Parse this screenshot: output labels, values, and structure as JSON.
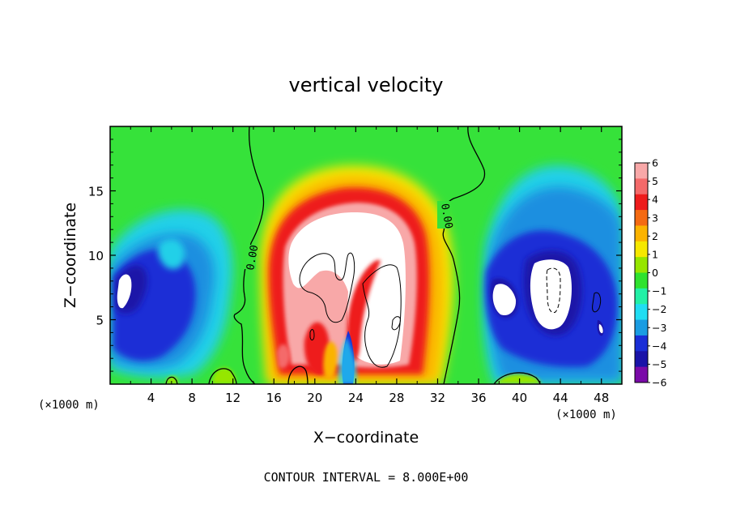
{
  "chart_data": {
    "type": "heatmap",
    "title": "vertical velocity",
    "xlabel": "X−coordinate",
    "ylabel": "Z−coordinate",
    "x_unit_left": "(×1000 m)",
    "x_unit_right": "(×1000 m)",
    "xlim": [
      0,
      50
    ],
    "ylim": [
      0,
      20
    ],
    "x_ticks": [
      4,
      8,
      12,
      16,
      20,
      24,
      28,
      32,
      36,
      40,
      44,
      48
    ],
    "y_ticks": [
      5,
      10,
      15
    ],
    "grid": false,
    "colorbar": {
      "position": "right",
      "levels": [
        6,
        5,
        4,
        3,
        2,
        1,
        0,
        -1,
        -2,
        -3,
        -4,
        -5,
        -6
      ],
      "labels": [
        "6",
        "5",
        "4",
        "3",
        "2",
        "1",
        "0",
        "−1",
        "−2",
        "−3",
        "−4",
        "−5",
        "−6"
      ],
      "colors": [
        "#f8a8a8",
        "#f46a6a",
        "#ee1c1c",
        "#f46a12",
        "#fbb300",
        "#f6e800",
        "#96e600",
        "#2fe22f",
        "#22f0a6",
        "#20ddf3",
        "#1a9ce2",
        "#1a2ed6",
        "#1a13a8",
        "#7a0aa8"
      ]
    },
    "contour_labels": [
      {
        "text": "0.00",
        "x": 13.8,
        "y": 10.0
      },
      {
        "text": "0.00",
        "x": 32.4,
        "y": 13.2
      }
    ],
    "footer": "CONTOUR INTERVAL = 8.000E+00"
  }
}
